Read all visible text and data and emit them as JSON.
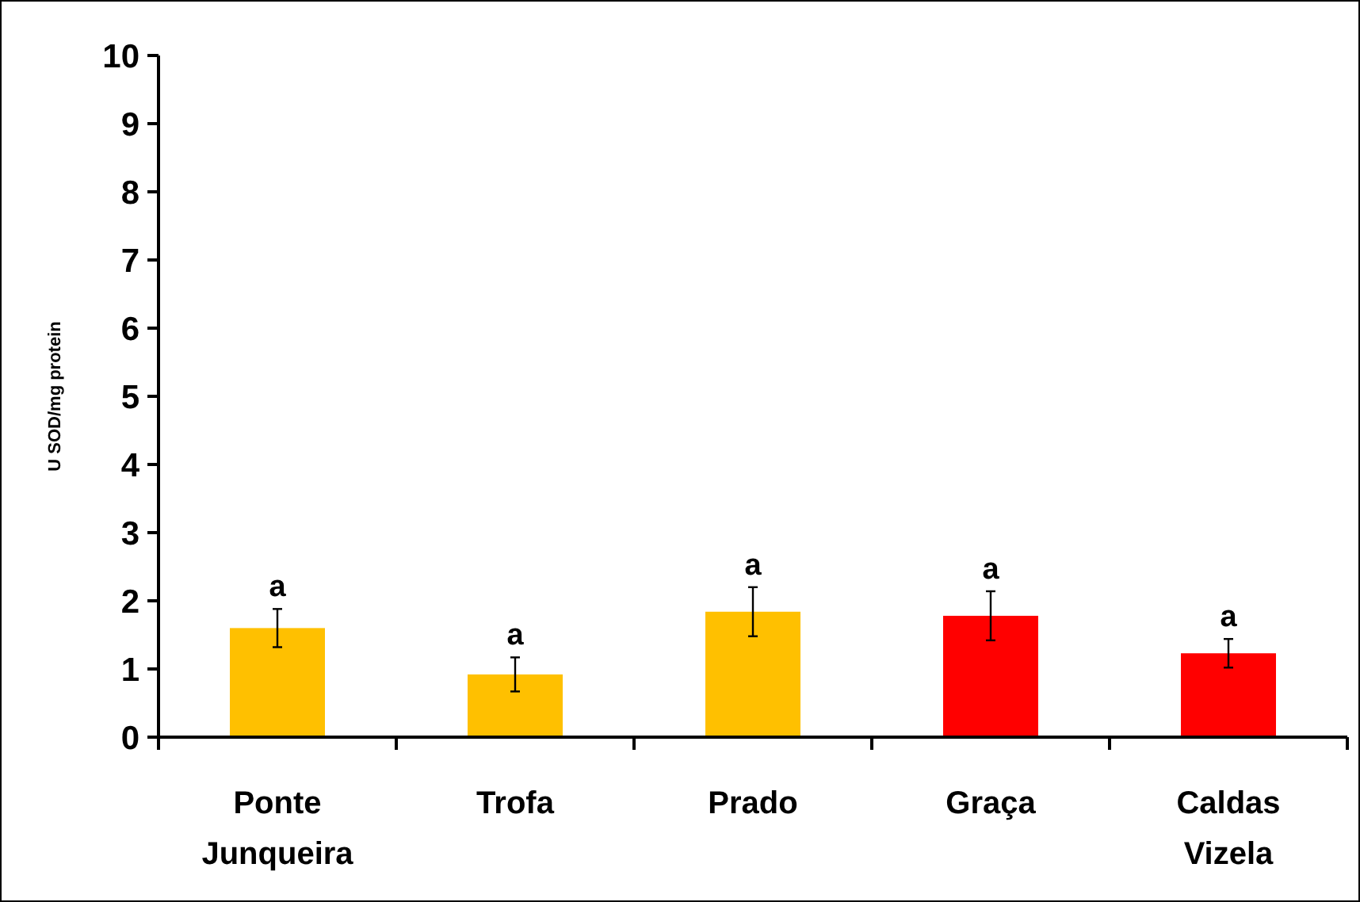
{
  "chart_data": {
    "type": "bar",
    "ylabel": "U SOD/mg protein",
    "categories": [
      "Ponte Junqueira",
      "Trofa",
      "Prado",
      "Graça",
      "Caldas Vizela"
    ],
    "values": [
      1.6,
      0.92,
      1.84,
      1.78,
      1.23
    ],
    "colors": [
      "#ffc000",
      "#ffc000",
      "#ffc000",
      "#ff0000",
      "#ff0000"
    ],
    "errors": [
      0.28,
      0.25,
      0.36,
      0.36,
      0.21
    ],
    "ylim": [
      0,
      10
    ],
    "yticks": [
      0,
      1,
      2,
      3,
      4,
      5,
      6,
      7,
      8,
      9,
      10
    ],
    "grid": false,
    "annotations": [
      {
        "text": "a",
        "x": "Ponte Junqueira",
        "y": 1.88
      },
      {
        "text": "a",
        "x": "Trofa",
        "y": 1.17
      },
      {
        "text": "a",
        "x": "Prado",
        "y": 2.2
      },
      {
        "text": "a",
        "x": "Graça",
        "y": 2.14
      },
      {
        "text": "a",
        "x": "Caldas Vizela",
        "y": 1.44
      }
    ]
  }
}
